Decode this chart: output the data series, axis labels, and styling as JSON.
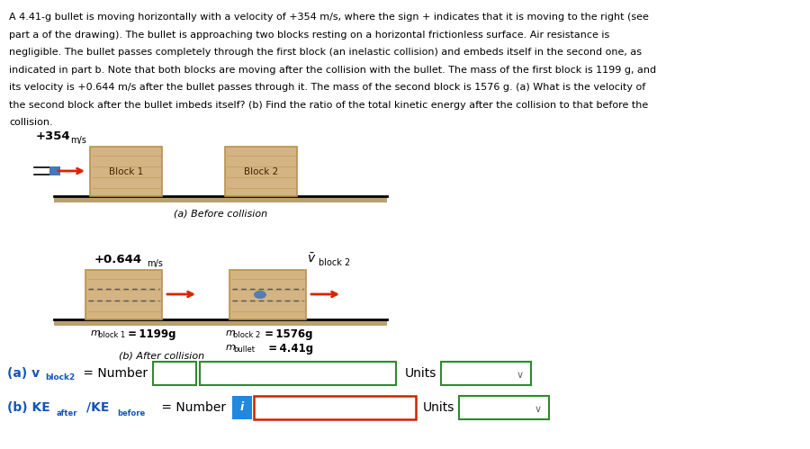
{
  "title_lines": [
    "A 4.41-g bullet is moving horizontally with a velocity of +354 m/s, where the sign + indicates that it is moving to the right (see",
    "part a of the drawing). The bullet is approaching two blocks resting on a horizontal frictionless surface. Air resistance is",
    "negligible. The bullet passes completely through the first block (an inelastic collision) and embeds itself in the second one, as",
    "indicated in part b. Note that both blocks are moving after the collision with the bullet. The mass of the first block is 1199 g, and",
    "its velocity is +0.644 m/s after the bullet passes through it. The mass of the second block is 1576 g. (a) What is the velocity of",
    "the second block after the bullet imbeds itself? (b) Find the ratio of the total kinetic energy after the collision to that before the",
    "collision."
  ],
  "italic_words_line1": "a",
  "italic_words_line3": "b",
  "block_color": "#D4B483",
  "block_grain_color": "#C8A060",
  "block_border_color": "#B8924A",
  "surface_line_color": "#000000",
  "surface_fill_color": "#C4A870",
  "arrow_color": "#DD2200",
  "bullet_blue": "#4477BB",
  "text_color": "#000000",
  "blue_label_color": "#1155BB",
  "green_border": "#2D8B2D",
  "red_border": "#CC2200",
  "blue_btn": "#2288DD",
  "before_label": "(a) Before collision",
  "after_label": "(b) After collision",
  "answer_a_prefix": "(a) v",
  "answer_a_sub": "block2",
  "answer_b_prefix": "(b) KE",
  "answer_b_sub1": "after",
  "answer_b_sub2": "before",
  "units_text": "Units"
}
